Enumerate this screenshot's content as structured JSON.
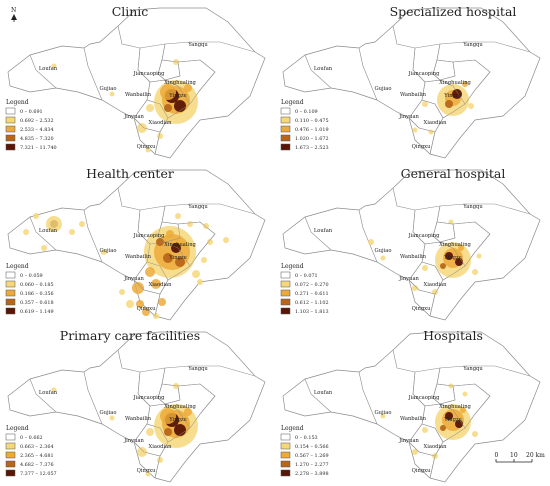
{
  "north_label": "N",
  "scale": {
    "labels": [
      "0",
      "10",
      "20 km"
    ]
  },
  "colors": [
    "#ffffff",
    "#f6d87a",
    "#ecaa3a",
    "#b8661a",
    "#5a1505"
  ],
  "legend_title": "Legend",
  "place_names": {
    "yangqu": "Yangqu",
    "loufan": "Loufan",
    "gujiao": "Gujiao",
    "jiancaoping": "Jiancaoping",
    "xinghualing": "Xinghualing",
    "wanbailin": "Wanbailin",
    "yingze": "Yingze",
    "jinyuan": "Jinyuan",
    "xiaodian": "Xiaodian",
    "qingxu": "Qingxu"
  },
  "panels": [
    {
      "title": "Clinic",
      "legend": [
        "0 – 0.691",
        "0.692 – 2.532",
        "2.533 – 4.834",
        "4.835 – 7.320",
        "7.321 – 11.740"
      ]
    },
    {
      "title": "Specialized hospital",
      "legend": [
        "0 – 0.109",
        "0.110 – 0.475",
        "0.476 – 1.019",
        "1.020 – 1.672",
        "1.673 – 2.523"
      ]
    },
    {
      "title": "Health center",
      "legend": [
        "0 – 0.059",
        "0.060 – 0.185",
        "0.186 – 0.356",
        "0.357 – 0.618",
        "0.619 – 1.149"
      ]
    },
    {
      "title": "General hospital",
      "legend": [
        "0 – 0.071",
        "0.072 – 0.270",
        "0.271 – 0.611",
        "0.612 – 1.102",
        "1.103 – 1.813"
      ]
    },
    {
      "title": "Primary care facilities",
      "legend": [
        "0 – 0.662",
        "0.663 – 2.364",
        "2.365 – 4.681",
        "4.682 – 7.376",
        "7.377 – 12.057"
      ]
    },
    {
      "title": "Hospitals",
      "legend": [
        "0 – 0.153",
        "0.154 – 0.566",
        "0.567 – 1.269",
        "1.270 – 2.277",
        "2.278 – 3.898"
      ]
    }
  ]
}
